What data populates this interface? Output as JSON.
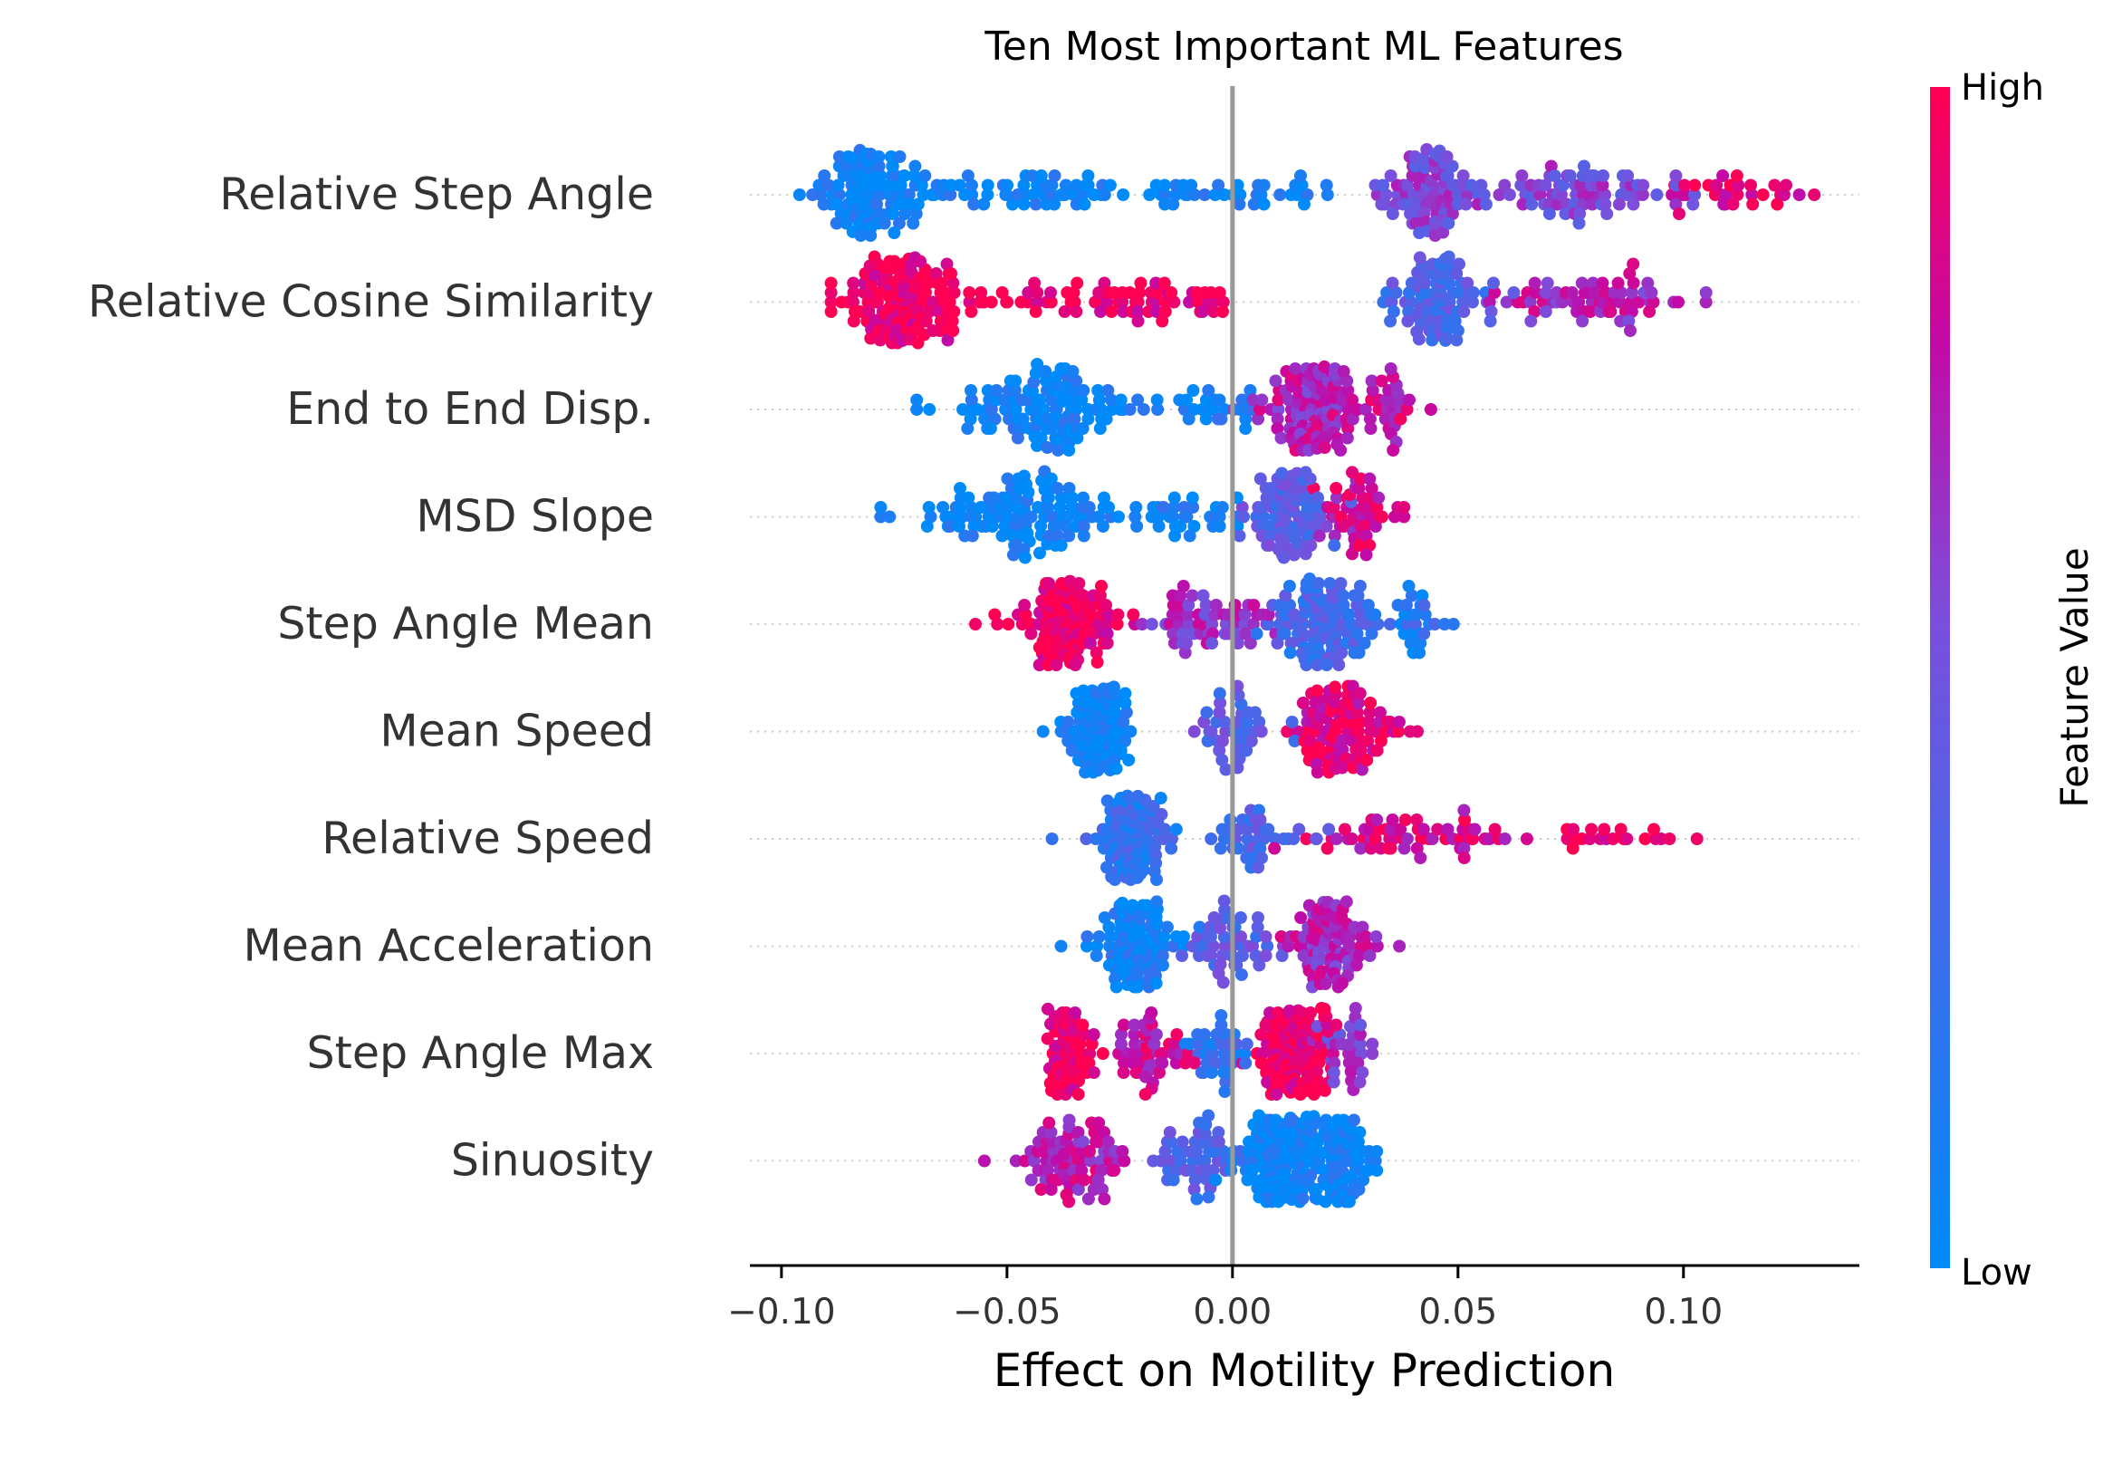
{
  "chart_data": {
    "type": "scatter",
    "subtype": "beeswarm",
    "title": "Ten Most Important ML Features",
    "xlabel": "Effect on Motility Prediction",
    "xlim": [
      -0.107,
      0.139
    ],
    "x_ticks": [
      -0.1,
      -0.05,
      0.0,
      0.05,
      0.1
    ],
    "x_tick_labels": [
      "−0.10",
      "−0.05",
      "0.00",
      "0.05",
      "0.10"
    ],
    "zero_line": 0.0,
    "colorbar": {
      "label": "Feature Value",
      "high_label": "High",
      "low_label": "Low",
      "high_color": "#ff0052",
      "low_color": "#008bfb"
    },
    "features": [
      {
        "name": "Relative Step Angle",
        "range": [
          -0.096,
          0.129
        ],
        "clusters": [
          {
            "center": -0.08,
            "spread": 0.012,
            "count": 110,
            "value": 0.05
          },
          {
            "center": -0.045,
            "spread": 0.025,
            "count": 60,
            "value": 0.05
          },
          {
            "center": 0.0,
            "spread": 0.025,
            "count": 35,
            "value": 0.06
          },
          {
            "center": 0.045,
            "spread": 0.01,
            "count": 90,
            "value": 0.55
          },
          {
            "center": 0.08,
            "spread": 0.02,
            "count": 70,
            "value": 0.55
          },
          {
            "center": 0.112,
            "spread": 0.012,
            "count": 30,
            "value": 0.92
          }
        ]
      },
      {
        "name": "Relative Cosine Similarity",
        "range": [
          -0.089,
          0.105
        ],
        "clusters": [
          {
            "center": -0.073,
            "spread": 0.013,
            "count": 140,
            "value": 0.96
          },
          {
            "center": -0.025,
            "spread": 0.025,
            "count": 70,
            "value": 0.95
          },
          {
            "center": 0.045,
            "spread": 0.01,
            "count": 90,
            "value": 0.35
          },
          {
            "center": 0.08,
            "spread": 0.02,
            "count": 65,
            "value": 0.7
          }
        ]
      },
      {
        "name": "End to End Disp.",
        "range": [
          -0.07,
          0.044
        ],
        "clusters": [
          {
            "center": -0.04,
            "spread": 0.018,
            "count": 120,
            "value": 0.05
          },
          {
            "center": -0.005,
            "spread": 0.01,
            "count": 25,
            "value": 0.08
          },
          {
            "center": 0.018,
            "spread": 0.01,
            "count": 120,
            "value": 0.72
          },
          {
            "center": 0.035,
            "spread": 0.006,
            "count": 30,
            "value": 0.8
          }
        ]
      },
      {
        "name": "MSD Slope",
        "range": [
          -0.078,
          0.038
        ],
        "clusters": [
          {
            "center": -0.045,
            "spread": 0.02,
            "count": 120,
            "value": 0.05
          },
          {
            "center": -0.01,
            "spread": 0.012,
            "count": 30,
            "value": 0.08
          },
          {
            "center": 0.012,
            "spread": 0.008,
            "count": 90,
            "value": 0.4
          },
          {
            "center": 0.028,
            "spread": 0.007,
            "count": 50,
            "value": 0.82
          }
        ]
      },
      {
        "name": "Step Angle Mean",
        "range": [
          -0.057,
          0.049
        ],
        "clusters": [
          {
            "center": -0.038,
            "spread": 0.01,
            "count": 120,
            "value": 0.95
          },
          {
            "center": -0.005,
            "spread": 0.012,
            "count": 60,
            "value": 0.65
          },
          {
            "center": 0.02,
            "spread": 0.01,
            "count": 120,
            "value": 0.3
          },
          {
            "center": 0.04,
            "spread": 0.006,
            "count": 25,
            "value": 0.18
          }
        ]
      },
      {
        "name": "Mean Speed",
        "range": [
          -0.042,
          0.041
        ],
        "clusters": [
          {
            "center": -0.03,
            "spread": 0.006,
            "count": 120,
            "value": 0.05
          },
          {
            "center": 0.0,
            "spread": 0.01,
            "count": 40,
            "value": 0.4
          },
          {
            "center": 0.025,
            "spread": 0.01,
            "count": 100,
            "value": 0.9
          }
        ]
      },
      {
        "name": "Relative Speed",
        "range": [
          -0.04,
          0.103
        ],
        "clusters": [
          {
            "center": -0.022,
            "spread": 0.007,
            "count": 130,
            "value": 0.22
          },
          {
            "center": 0.005,
            "spread": 0.01,
            "count": 40,
            "value": 0.35
          },
          {
            "center": 0.04,
            "spread": 0.02,
            "count": 60,
            "value": 0.85
          },
          {
            "center": 0.085,
            "spread": 0.015,
            "count": 20,
            "value": 0.95
          }
        ]
      },
      {
        "name": "Mean Acceleration",
        "range": [
          -0.038,
          0.037
        ],
        "clusters": [
          {
            "center": -0.022,
            "spread": 0.007,
            "count": 120,
            "value": 0.08
          },
          {
            "center": 0.0,
            "spread": 0.008,
            "count": 50,
            "value": 0.4
          },
          {
            "center": 0.022,
            "spread": 0.009,
            "count": 90,
            "value": 0.7
          }
        ]
      },
      {
        "name": "Step Angle Max",
        "range": [
          -0.041,
          0.031
        ],
        "clusters": [
          {
            "center": -0.036,
            "spread": 0.004,
            "count": 70,
            "value": 0.95
          },
          {
            "center": -0.018,
            "spread": 0.008,
            "count": 50,
            "value": 0.8
          },
          {
            "center": -0.003,
            "spread": 0.007,
            "count": 35,
            "value": 0.2
          },
          {
            "center": 0.014,
            "spread": 0.007,
            "count": 140,
            "value": 0.96
          },
          {
            "center": 0.025,
            "spread": 0.005,
            "count": 30,
            "value": 0.6
          }
        ]
      },
      {
        "name": "Sinuosity",
        "range": [
          -0.055,
          0.032
        ],
        "clusters": [
          {
            "center": -0.035,
            "spread": 0.01,
            "count": 80,
            "value": 0.75
          },
          {
            "center": -0.008,
            "spread": 0.008,
            "count": 50,
            "value": 0.35
          },
          {
            "center": 0.012,
            "spread": 0.01,
            "count": 170,
            "value": 0.05
          },
          {
            "center": 0.025,
            "spread": 0.006,
            "count": 60,
            "value": 0.05
          }
        ]
      }
    ]
  }
}
